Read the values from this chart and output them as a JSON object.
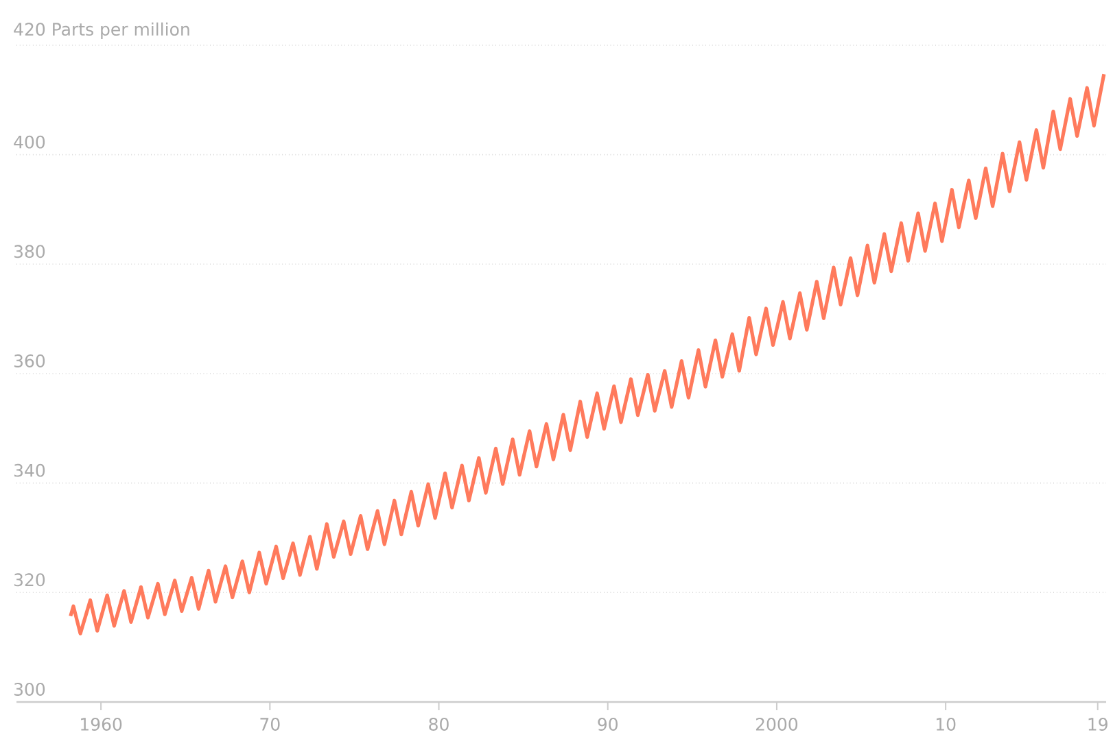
{
  "chart_data": {
    "type": "line",
    "x": [
      1958.2,
      1958.37,
      1958.78,
      1959.37,
      1959.78,
      1960.37,
      1960.78,
      1961.37,
      1961.78,
      1962.37,
      1962.78,
      1963.37,
      1963.78,
      1964.37,
      1964.78,
      1965.37,
      1965.78,
      1966.37,
      1966.78,
      1967.37,
      1967.78,
      1968.37,
      1968.78,
      1969.37,
      1969.78,
      1970.37,
      1970.78,
      1971.37,
      1971.78,
      1972.37,
      1972.78,
      1973.37,
      1973.78,
      1974.37,
      1974.78,
      1975.37,
      1975.78,
      1976.37,
      1976.78,
      1977.37,
      1977.78,
      1978.37,
      1978.78,
      1979.37,
      1979.78,
      1980.37,
      1980.78,
      1981.37,
      1981.78,
      1982.37,
      1982.78,
      1983.37,
      1983.78,
      1984.37,
      1984.78,
      1985.37,
      1985.78,
      1986.37,
      1986.78,
      1987.37,
      1987.78,
      1988.37,
      1988.78,
      1989.37,
      1989.78,
      1990.37,
      1990.78,
      1991.37,
      1991.78,
      1992.37,
      1992.78,
      1993.37,
      1993.78,
      1994.37,
      1994.78,
      1995.37,
      1995.78,
      1996.37,
      1996.78,
      1997.37,
      1997.78,
      1998.37,
      1998.78,
      1999.37,
      1999.78,
      2000.37,
      2000.78,
      2001.37,
      2001.78,
      2002.37,
      2002.78,
      2003.37,
      2003.78,
      2004.37,
      2004.78,
      2005.37,
      2005.78,
      2006.37,
      2006.78,
      2007.37,
      2007.78,
      2008.37,
      2008.78,
      2009.37,
      2009.78,
      2010.37,
      2010.78,
      2011.37,
      2011.78,
      2012.37,
      2012.78,
      2013.37,
      2013.78,
      2014.37,
      2014.78,
      2015.37,
      2015.78,
      2016.37,
      2016.78,
      2017.37,
      2017.78,
      2018.37,
      2018.78,
      2019.37
    ],
    "series": [
      {
        "color": "#ff7a5c",
        "values": [
          315.7,
          317.5,
          312.5,
          318.6,
          313.0,
          319.5,
          313.9,
          320.3,
          314.6,
          321.0,
          315.4,
          321.6,
          316.0,
          322.2,
          316.6,
          322.7,
          317.0,
          324.0,
          318.3,
          324.8,
          319.1,
          325.7,
          320.0,
          327.3,
          321.6,
          328.4,
          322.6,
          329.0,
          323.2,
          330.2,
          324.3,
          332.5,
          326.5,
          333.0,
          327.0,
          334.0,
          327.9,
          334.9,
          328.8,
          336.8,
          330.6,
          338.4,
          332.2,
          339.8,
          333.6,
          341.8,
          335.5,
          343.2,
          336.8,
          344.6,
          338.2,
          346.3,
          339.8,
          348.0,
          341.5,
          349.5,
          343.0,
          350.8,
          344.3,
          352.5,
          346.0,
          354.9,
          348.4,
          356.4,
          349.9,
          357.7,
          351.1,
          359.0,
          352.4,
          359.8,
          353.2,
          360.5,
          353.9,
          362.3,
          355.6,
          364.3,
          357.6,
          366.1,
          359.4,
          367.2,
          360.5,
          370.2,
          363.5,
          371.9,
          365.2,
          373.1,
          366.4,
          374.7,
          368.0,
          376.8,
          370.1,
          379.4,
          372.6,
          381.1,
          374.3,
          383.4,
          376.6,
          385.5,
          378.7,
          387.5,
          380.6,
          389.3,
          382.4,
          391.1,
          384.2,
          393.6,
          386.7,
          395.3,
          388.4,
          397.5,
          390.6,
          400.2,
          393.3,
          402.3,
          395.4,
          404.5,
          397.6,
          407.9,
          401.0,
          410.2,
          403.4,
          412.2,
          405.3,
          414.7
        ]
      }
    ],
    "xlim": [
      1955,
      2019.5
    ],
    "ylim": [
      300,
      420
    ],
    "xticks": [
      1960,
      {
        "value": 1970,
        "label": "70"
      },
      {
        "value": 1980,
        "label": "80"
      },
      {
        "value": 1990,
        "label": "90"
      },
      2000,
      {
        "value": 2010,
        "label": "10"
      },
      {
        "value": 2019,
        "label": "19"
      }
    ],
    "yticks": [
      300,
      320,
      340,
      360,
      380,
      400,
      {
        "value": 420,
        "label": "420 Parts per million"
      }
    ],
    "grid": "y",
    "marker": "none",
    "line_style": "solid"
  }
}
